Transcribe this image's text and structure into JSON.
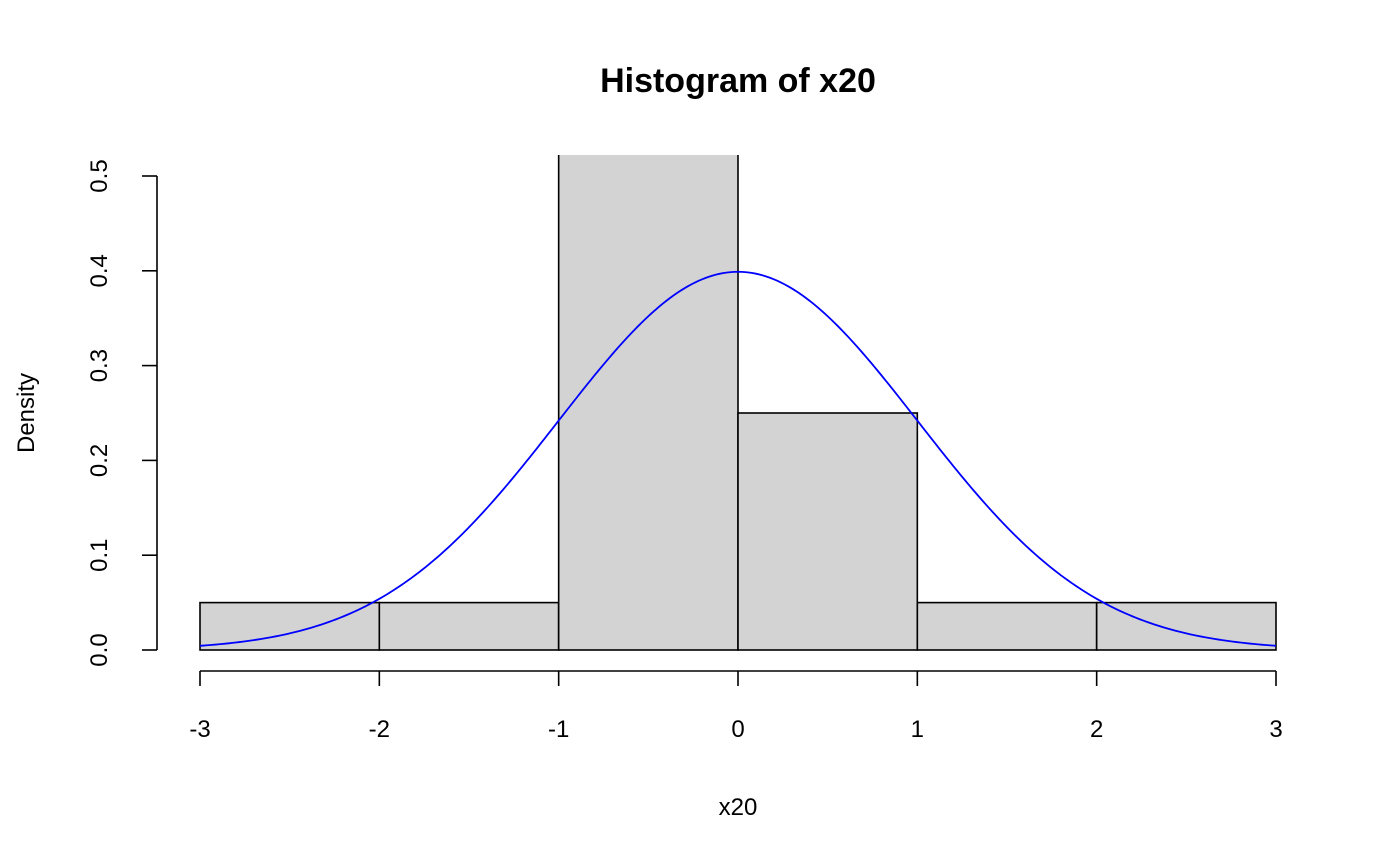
{
  "chart_data": {
    "type": "bar",
    "subtype": "histogram",
    "title": "Histogram of x20",
    "xlabel": "x20",
    "ylabel": "Density",
    "bins": [
      {
        "start": -3,
        "end": -2,
        "density": 0.05
      },
      {
        "start": -2,
        "end": -1,
        "density": 0.05
      },
      {
        "start": -1,
        "end": 0,
        "density": 0.6
      },
      {
        "start": 0,
        "end": 1,
        "density": 0.25
      },
      {
        "start": 1,
        "end": 2,
        "density": 0.05
      },
      {
        "start": 2,
        "end": 3,
        "density": 0.05
      }
    ],
    "xlim": [
      -3,
      3
    ],
    "ylim": [
      0,
      0.5
    ],
    "x_ticks": [
      -3,
      -2,
      -1,
      0,
      1,
      2,
      3
    ],
    "x_tick_labels": [
      "-3",
      "-2",
      "-1",
      "0",
      "1",
      "2",
      "3"
    ],
    "y_ticks": [
      0.0,
      0.1,
      0.2,
      0.3,
      0.4,
      0.5
    ],
    "y_tick_labels": [
      "0.0",
      "0.1",
      "0.2",
      "0.3",
      "0.4",
      "0.5"
    ],
    "overlay": {
      "type": "line",
      "function": "standard normal density",
      "mean": 0,
      "sd": 1
    },
    "grid": false,
    "colors": {
      "bar_fill": "#d3d3d3",
      "bar_stroke": "#000000",
      "curve": "#0000ff"
    }
  }
}
